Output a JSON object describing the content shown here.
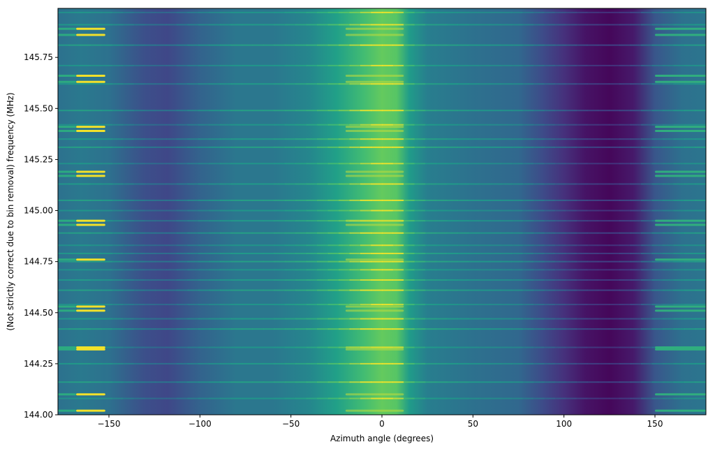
{
  "chart_data": {
    "type": "heatmap",
    "title": "",
    "xlabel": "Azimuth angle (degrees)",
    "ylabel": "(Not strictly correct due to bin removal) frequency (MHz)",
    "xlim": [
      -178,
      178
    ],
    "ylim": [
      144.0,
      145.99
    ],
    "xticks": [
      -150,
      -100,
      -50,
      0,
      50,
      100,
      150
    ],
    "xtick_labels": [
      "−150",
      "−100",
      "−50",
      "0",
      "50",
      "100",
      "150"
    ],
    "yticks": [
      144.0,
      144.25,
      144.5,
      144.75,
      145.0,
      145.25,
      145.5,
      145.75
    ],
    "ytick_labels": [
      "144.00",
      "144.25",
      "144.50",
      "144.75",
      "145.00",
      "145.25",
      "145.50",
      "145.75"
    ],
    "colormap": "viridis",
    "grid": false,
    "colors": {
      "low": "#440154",
      "mid": "#21918c",
      "high": "#fde725"
    },
    "azimuth_intensity_profile": [
      {
        "az": -178,
        "v": 0.42
      },
      {
        "az": -165,
        "v": 0.46
      },
      {
        "az": -150,
        "v": 0.42
      },
      {
        "az": -140,
        "v": 0.34
      },
      {
        "az": -130,
        "v": 0.27
      },
      {
        "az": -118,
        "v": 0.24
      },
      {
        "az": -100,
        "v": 0.36
      },
      {
        "az": -80,
        "v": 0.45
      },
      {
        "az": -60,
        "v": 0.45
      },
      {
        "az": -40,
        "v": 0.52
      },
      {
        "az": -25,
        "v": 0.64
      },
      {
        "az": -10,
        "v": 0.78
      },
      {
        "az": 0,
        "v": 0.86
      },
      {
        "az": 8,
        "v": 0.83
      },
      {
        "az": 15,
        "v": 0.62
      },
      {
        "az": 25,
        "v": 0.48
      },
      {
        "az": 50,
        "v": 0.42
      },
      {
        "az": 75,
        "v": 0.38
      },
      {
        "az": 88,
        "v": 0.26
      },
      {
        "az": 100,
        "v": 0.16
      },
      {
        "az": 112,
        "v": 0.06
      },
      {
        "az": 125,
        "v": 0.02
      },
      {
        "az": 138,
        "v": 0.08
      },
      {
        "az": 150,
        "v": 0.3
      },
      {
        "az": 165,
        "v": 0.42
      },
      {
        "az": 178,
        "v": 0.44
      }
    ],
    "bright_lines_mhz": [
      145.97,
      145.91,
      145.81,
      145.71,
      145.62,
      145.49,
      145.42,
      145.35,
      145.31,
      145.23,
      145.13,
      145.05,
      145.0,
      144.95,
      144.89,
      144.83,
      144.79,
      144.75,
      144.71,
      144.66,
      144.61,
      144.54,
      144.47,
      144.42,
      144.33,
      144.25,
      144.16,
      144.08
    ],
    "hotspot_rows_mhz": [
      145.89,
      145.86,
      145.66,
      145.63,
      145.41,
      145.39,
      145.19,
      145.17,
      144.95,
      144.93,
      144.76,
      144.53,
      144.51,
      144.33,
      144.32,
      144.1,
      144.02
    ]
  }
}
